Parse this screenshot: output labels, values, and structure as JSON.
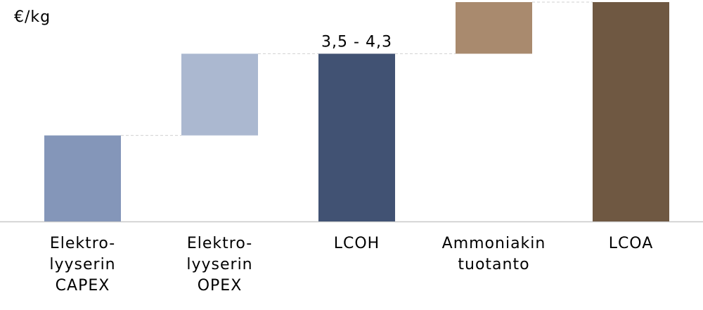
{
  "chart_data": {
    "type": "waterfall",
    "y_label": "€/kg",
    "annotation": "3,5 - 4,3",
    "categories": [
      "Elektro-\nlyyserin\nCAPEX",
      "Elektro-\nlyyserin\nOPEX",
      "LCOH",
      "Ammoniakin\ntuotanto",
      "LCOA"
    ],
    "values": [
      2.0,
      1.9,
      3.9,
      1.2,
      5.1
    ],
    "is_total": [
      false,
      false,
      true,
      false,
      true
    ],
    "colors": [
      "#8496b9",
      "#abb8d0",
      "#415273",
      "#a98a6e",
      "#6f5842"
    ],
    "ylim": [
      0,
      5.1
    ]
  }
}
